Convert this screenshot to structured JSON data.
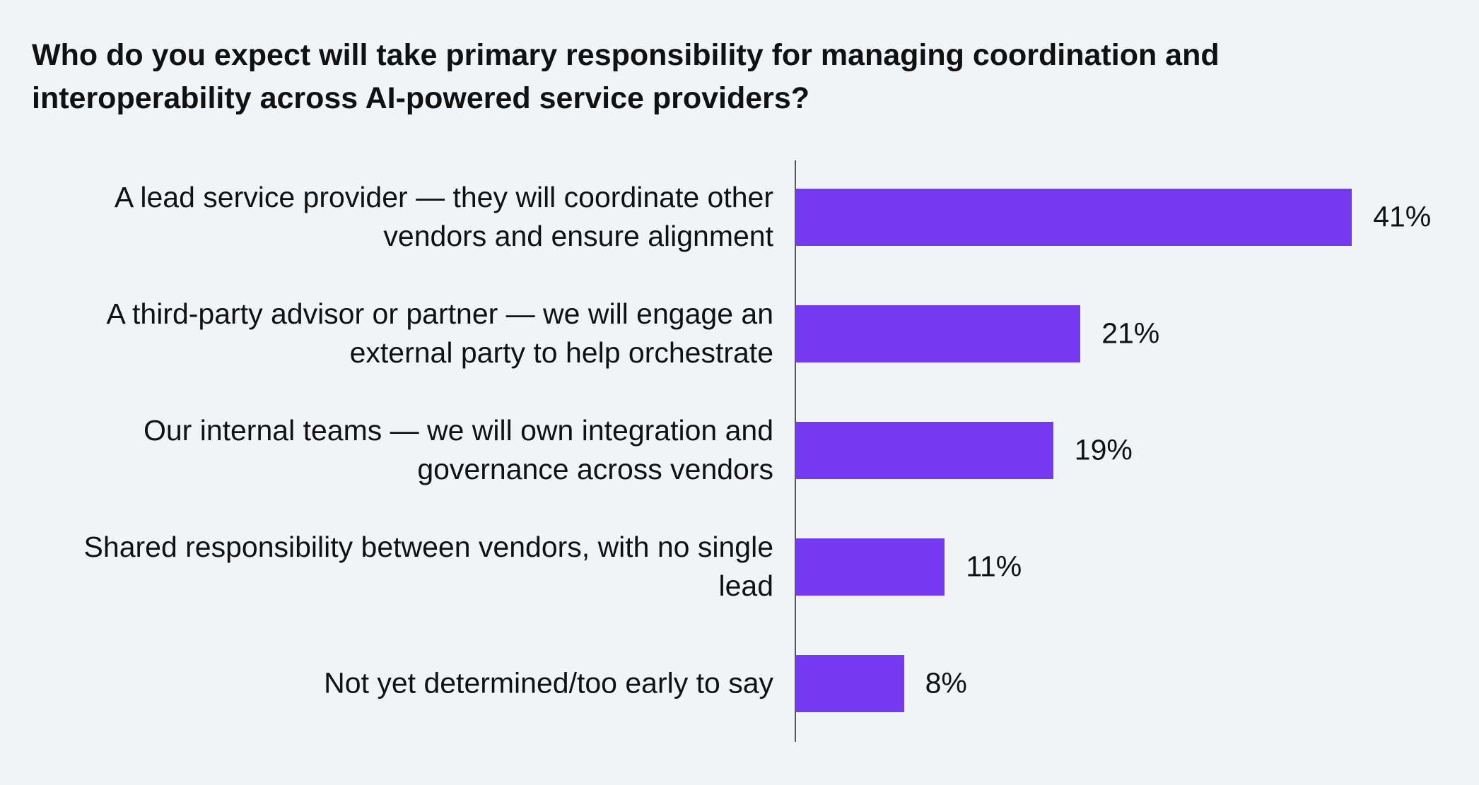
{
  "chart_data": {
    "type": "bar",
    "orientation": "horizontal",
    "title": "Who do you expect will take primary responsibility for managing coordination and interoperability across AI-powered service providers?",
    "categories": [
      "A lead service provider — they will coordinate other vendors and ensure alignment",
      "A third-party advisor or partner — we will engage an external party to help orchestrate",
      "Our internal teams — we will own integration and governance across vendors",
      "Shared responsibility between vendors, with no single lead",
      "Not yet determined/too early to say"
    ],
    "values": [
      41,
      21,
      19,
      11,
      8
    ],
    "value_labels": [
      "41%",
      "21%",
      "19%",
      "11%",
      "8%"
    ],
    "color": "#7639f2"
  }
}
